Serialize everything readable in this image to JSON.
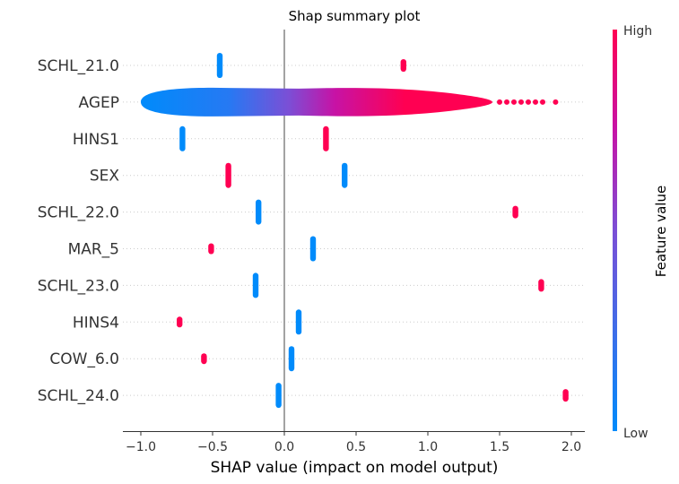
{
  "chart_data": {
    "type": "scatter",
    "subtype": "shap-summary-beeswarm",
    "title": "Shap summary plot",
    "xlabel": "SHAP value (impact on model output)",
    "xlim": [
      -1.1,
      2.1
    ],
    "xticks": [
      "−1.0",
      "−0.5",
      "0.0",
      "0.5",
      "1.0",
      "1.5",
      "2.0"
    ],
    "xtick_values": [
      -1.0,
      -0.5,
      0.0,
      0.5,
      1.0,
      1.5,
      2.0
    ],
    "zero_line": 0.0,
    "grid": "horizontal dotted per feature",
    "colors": {
      "low": "#008bfb",
      "high": "#ff0052",
      "zero_line": "#999999"
    },
    "colorbar": {
      "label": "Feature value",
      "high_label": "High",
      "low_label": "Low"
    },
    "features": [
      {
        "name": "SCHL_21.0",
        "clusters": [
          {
            "x": -0.45,
            "spread": 0.01,
            "color": 0.0
          },
          {
            "x": 0.83,
            "spread": 0.01,
            "color": 1.0
          }
        ]
      },
      {
        "name": "AGEP",
        "clusters": [
          {
            "x_min": -1.0,
            "x_max": 1.89,
            "color_min": 0.0,
            "color_max": 1.0,
            "shape": "continuous"
          }
        ]
      },
      {
        "name": "HINS1",
        "clusters": [
          {
            "x": -0.71,
            "spread": 0.01,
            "color": 0.0
          },
          {
            "x": 0.29,
            "spread": 0.01,
            "color": 1.0
          }
        ]
      },
      {
        "name": "SEX",
        "clusters": [
          {
            "x": -0.39,
            "spread": 0.01,
            "color": 1.0
          },
          {
            "x": 0.42,
            "spread": 0.01,
            "color": 0.0
          }
        ]
      },
      {
        "name": "SCHL_22.0",
        "clusters": [
          {
            "x": -0.18,
            "spread": 0.01,
            "color": 0.0
          },
          {
            "x": 1.61,
            "spread": 0.01,
            "color": 1.0
          }
        ]
      },
      {
        "name": "MAR_5",
        "clusters": [
          {
            "x": -0.51,
            "spread": 0.01,
            "color": 1.0
          },
          {
            "x": 0.2,
            "spread": 0.01,
            "color": 0.0
          }
        ]
      },
      {
        "name": "SCHL_23.0",
        "clusters": [
          {
            "x": -0.2,
            "spread": 0.01,
            "color": 0.0
          },
          {
            "x": 1.79,
            "spread": 0.01,
            "color": 1.0
          }
        ]
      },
      {
        "name": "HINS4",
        "clusters": [
          {
            "x": -0.73,
            "spread": 0.01,
            "color": 1.0
          },
          {
            "x": 0.1,
            "spread": 0.01,
            "color": 0.0
          }
        ]
      },
      {
        "name": "COW_6.0",
        "clusters": [
          {
            "x": -0.56,
            "spread": 0.01,
            "color": 1.0
          },
          {
            "x": 0.05,
            "spread": 0.01,
            "color": 0.0
          }
        ]
      },
      {
        "name": "SCHL_24.0",
        "clusters": [
          {
            "x": -0.04,
            "spread": 0.01,
            "color": 0.0
          },
          {
            "x": 1.96,
            "spread": 0.01,
            "color": 1.0
          }
        ]
      }
    ]
  }
}
